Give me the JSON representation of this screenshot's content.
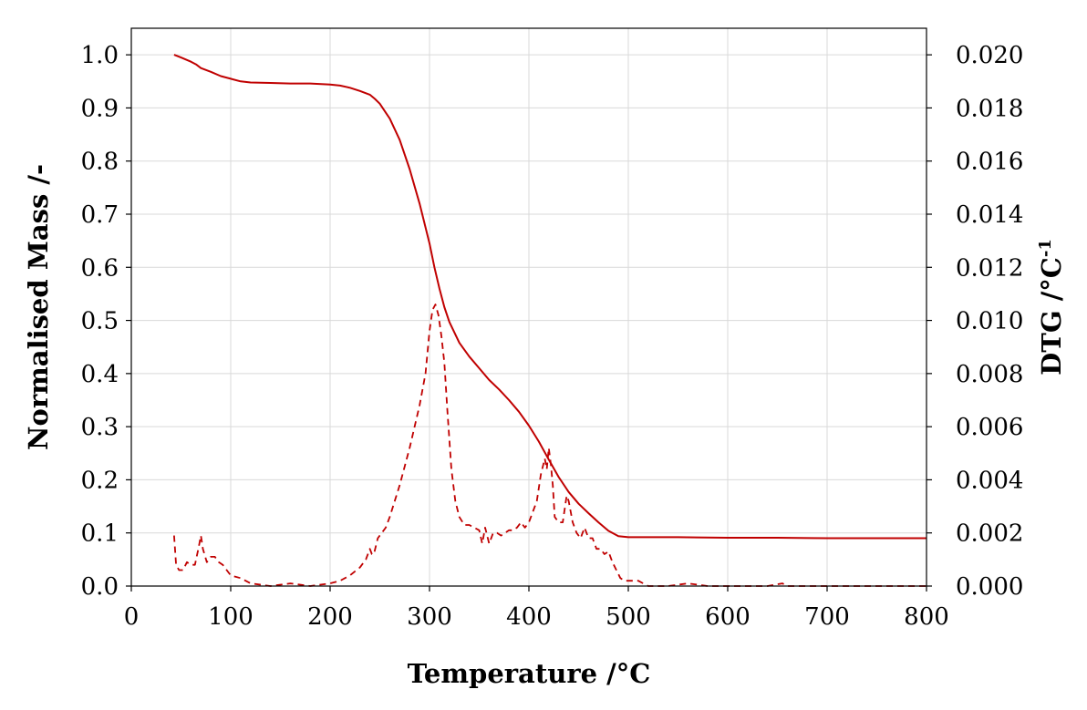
{
  "chart_data": {
    "type": "line",
    "xlabel": "Temperature /°C",
    "ylabel_left": "Normalised Mass /-",
    "ylabel_right": "DTG  /°C",
    "ylabel_right_sup": "-1",
    "x_range": [
      0,
      800
    ],
    "x_ticks": [
      0,
      100,
      200,
      300,
      400,
      500,
      600,
      700,
      800
    ],
    "x_tick_labels": [
      "0",
      "100",
      "200",
      "300",
      "400",
      "500",
      "600",
      "700",
      "800"
    ],
    "y_left_range": [
      0.0,
      1.05
    ],
    "y_left_ticks": [
      0.0,
      0.1,
      0.2,
      0.3,
      0.4,
      0.5,
      0.6,
      0.7,
      0.8,
      0.9,
      1.0
    ],
    "y_left_tick_labels": [
      "0.0",
      "0.1",
      "0.2",
      "0.3",
      "0.4",
      "0.5",
      "0.6",
      "0.7",
      "0.8",
      "0.9",
      "1.0"
    ],
    "y_right_range": [
      0.0,
      0.021
    ],
    "y_right_ticks": [
      0.0,
      0.002,
      0.004,
      0.006,
      0.008,
      0.01,
      0.012,
      0.014,
      0.016,
      0.018,
      0.02
    ],
    "y_right_tick_labels": [
      "0.000",
      "0.002",
      "0.004",
      "0.006",
      "0.008",
      "0.010",
      "0.012",
      "0.014",
      "0.016",
      "0.018",
      "0.020"
    ],
    "grid": true,
    "series": [
      {
        "style": "solid",
        "axis": "left",
        "color": "#c00000",
        "x": [
          43,
          50,
          60,
          65,
          70,
          80,
          90,
          100,
          110,
          120,
          140,
          160,
          180,
          200,
          210,
          220,
          230,
          240,
          245,
          250,
          260,
          270,
          280,
          290,
          300,
          305,
          310,
          315,
          320,
          330,
          340,
          350,
          360,
          370,
          380,
          390,
          400,
          410,
          420,
          430,
          440,
          450,
          460,
          470,
          480,
          490,
          500,
          550,
          600,
          650,
          700,
          750,
          800
        ],
        "y": [
          1.0,
          0.995,
          0.987,
          0.982,
          0.975,
          0.968,
          0.96,
          0.955,
          0.95,
          0.948,
          0.947,
          0.946,
          0.946,
          0.944,
          0.942,
          0.938,
          0.932,
          0.925,
          0.917,
          0.908,
          0.88,
          0.84,
          0.785,
          0.72,
          0.645,
          0.6,
          0.56,
          0.525,
          0.497,
          0.458,
          0.432,
          0.41,
          0.388,
          0.37,
          0.35,
          0.328,
          0.302,
          0.272,
          0.238,
          0.205,
          0.177,
          0.155,
          0.137,
          0.12,
          0.104,
          0.094,
          0.092,
          0.092,
          0.091,
          0.091,
          0.09,
          0.09,
          0.09
        ]
      },
      {
        "style": "dashed",
        "axis": "right",
        "color": "#c00000",
        "x": [
          43,
          45,
          48,
          52,
          56,
          60,
          64,
          68,
          70,
          72,
          76,
          80,
          84,
          88,
          92,
          96,
          100,
          110,
          120,
          140,
          160,
          180,
          200,
          210,
          220,
          230,
          236,
          240,
          242,
          244,
          248,
          252,
          256,
          260,
          270,
          280,
          290,
          296,
          300,
          303,
          306,
          309,
          312,
          315,
          318,
          322,
          326,
          330,
          335,
          340,
          345,
          350,
          353,
          356,
          360,
          364,
          368,
          372,
          376,
          380,
          384,
          388,
          392,
          396,
          400,
          404,
          408,
          412,
          416,
          418,
          420,
          422,
          424,
          426,
          430,
          434,
          438,
          440,
          444,
          448,
          452,
          456,
          460,
          464,
          468,
          472,
          476,
          480,
          484,
          488,
          492,
          496,
          500,
          510,
          520,
          540,
          560,
          580,
          600,
          620,
          640,
          655,
          660,
          680,
          700,
          720,
          740,
          760,
          780,
          800
        ],
        "y": [
          0.0019,
          0.0008,
          0.0006,
          0.0006,
          0.0009,
          0.0008,
          0.0008,
          0.0015,
          0.0019,
          0.0014,
          0.0009,
          0.0011,
          0.0011,
          0.0009,
          0.0008,
          0.0006,
          0.0004,
          0.0003,
          0.0001,
          0.0,
          0.0001,
          0.0,
          0.0001,
          0.0002,
          0.0004,
          0.0007,
          0.001,
          0.0014,
          0.0012,
          0.0012,
          0.0018,
          0.002,
          0.0022,
          0.0026,
          0.0038,
          0.0052,
          0.0068,
          0.008,
          0.0096,
          0.0104,
          0.0106,
          0.0102,
          0.0094,
          0.0084,
          0.0066,
          0.0044,
          0.0032,
          0.0026,
          0.0023,
          0.0023,
          0.0022,
          0.0021,
          0.0016,
          0.0022,
          0.0016,
          0.002,
          0.002,
          0.0019,
          0.002,
          0.0021,
          0.0021,
          0.0022,
          0.0024,
          0.0022,
          0.0024,
          0.0028,
          0.0032,
          0.0042,
          0.0048,
          0.0044,
          0.0052,
          0.0046,
          0.0038,
          0.0026,
          0.0024,
          0.0024,
          0.0034,
          0.0032,
          0.0024,
          0.002,
          0.0018,
          0.0022,
          0.0018,
          0.0018,
          0.0014,
          0.0014,
          0.0012,
          0.0013,
          0.0009,
          0.0006,
          0.0003,
          0.0002,
          0.0002,
          0.0002,
          0.0,
          0.0,
          0.0001,
          0.0,
          0.0,
          0.0,
          0.0,
          0.0001,
          0.0,
          0.0,
          0.0,
          0.0,
          0.0,
          0.0,
          0.0,
          0.0
        ]
      }
    ]
  }
}
